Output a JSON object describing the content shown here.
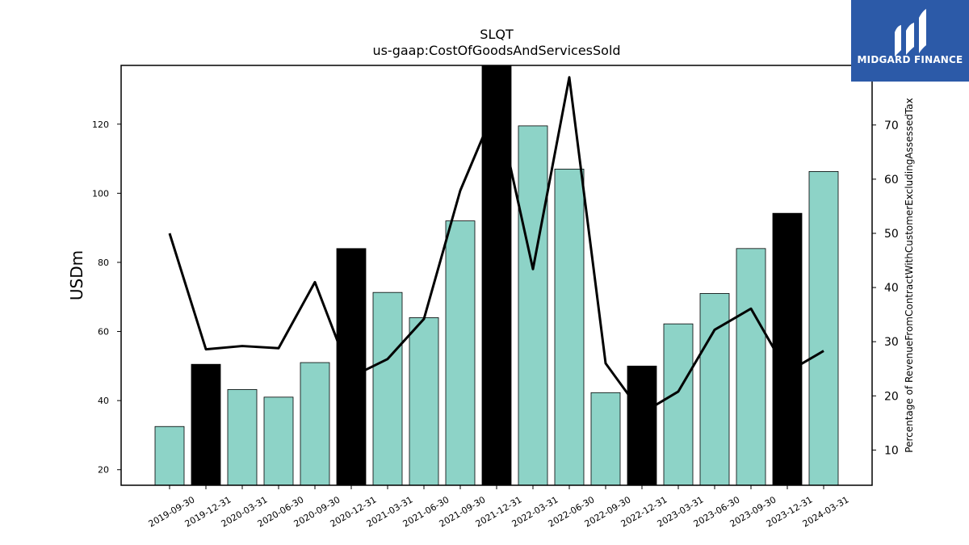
{
  "logo": {
    "text": "MIDGARD FINANCE",
    "background": "#2c5aa8"
  },
  "chart_data": {
    "type": "bar",
    "title": "SLQT",
    "subtitle": "us-gaap:CostOfGoodsAndServicesSold",
    "ylabel": "USDm",
    "y2label": "Percentage of RevenueFromContractWithCustomerExcludingAssessedTax",
    "ylim": [
      15.5,
      137
    ],
    "y2lim": [
      3.5,
      81
    ],
    "yticks": [
      20,
      40,
      60,
      80,
      100,
      120
    ],
    "y2ticks": [
      10,
      20,
      30,
      40,
      50,
      60,
      70
    ],
    "categories": [
      "2019-09-30",
      "2019-12-31",
      "2020-03-31",
      "2020-06-30",
      "2020-09-30",
      "2020-12-31",
      "2021-03-31",
      "2021-06-30",
      "2021-09-30",
      "2021-12-31",
      "2022-03-31",
      "2022-06-30",
      "2022-09-30",
      "2022-12-31",
      "2023-03-31",
      "2023-06-30",
      "2023-09-30",
      "2023-12-31",
      "2024-03-31"
    ],
    "series": [
      {
        "axis": "left",
        "kind": "bar",
        "values": [
          32.5,
          50.5,
          43.2,
          41,
          51,
          84,
          71.3,
          64,
          92,
          137,
          119.5,
          107,
          42.3,
          50,
          62.2,
          71,
          84,
          94.2,
          106.3
        ],
        "highlight": [
          false,
          true,
          false,
          false,
          false,
          true,
          false,
          false,
          false,
          true,
          false,
          false,
          false,
          true,
          false,
          false,
          false,
          true,
          false
        ]
      },
      {
        "axis": "right",
        "kind": "line",
        "values": [
          50,
          28.6,
          29.2,
          28.8,
          41,
          23.5,
          26.8,
          34.2,
          57.9,
          73.8,
          43.4,
          78.8,
          26,
          16.8,
          20.8,
          32.2,
          36.1,
          24.4,
          28.3
        ]
      }
    ],
    "colors": {
      "bar": "#8dd3c7",
      "highlight": "#000000",
      "line": "#000000"
    },
    "grid": false,
    "legend": "none"
  }
}
